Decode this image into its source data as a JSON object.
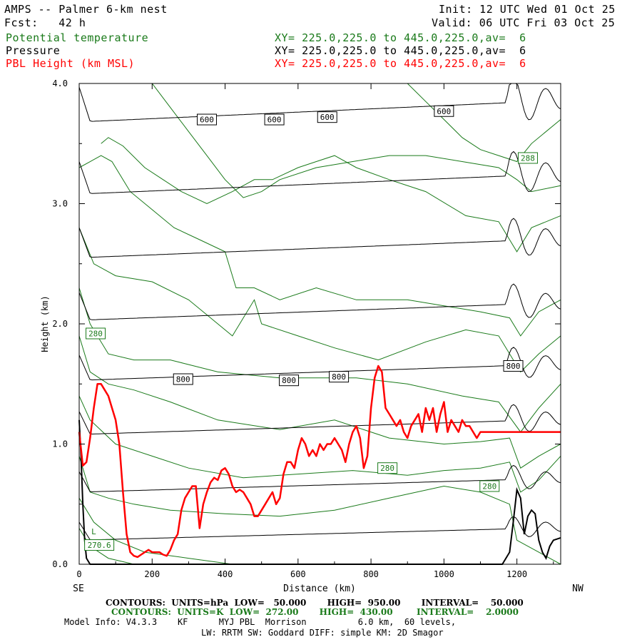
{
  "header": {
    "model_title": "AMPS -- Palmer 6-km nest",
    "init_line": "Init: 12 UTC Wed 01 Oct 25",
    "forecast_line": "Fcst:   42 h",
    "valid_line": "Valid: 06 UTC Fri 03 Oct 25",
    "fields": [
      {
        "name": "Potential temperature",
        "xy": "XY= 225.0,225.0 to 445.0,225.0,av=  6",
        "color": "#1a7a1a"
      },
      {
        "name": "Pressure",
        "xy": "XY= 225.0,225.0 to 445.0,225.0,av=  6",
        "color": "#000000"
      },
      {
        "name": "PBL Height (km MSL)",
        "xy": "XY= 225.0,225.0 to 445.0,225.0,av=  6",
        "color": "#ff0000"
      }
    ]
  },
  "footer": {
    "pressure_contours": "CONTOURS:  UNITS=hPa  LOW=   50.000       HIGH=  950.00       INTERVAL=    50.000",
    "theta_contours": "CONTOURS:  UNITS=K  LOW=  272.00       HIGH=  430.00        INTERVAL=    2.0000",
    "model_info_1": "Model Info: V4.3.3    KF      MYJ PBL  Morrison          6.0 km,  60 levels,",
    "model_info_2": "LW: RRTM SW: Goddard DIFF: simple KM: 2D Smagor"
  },
  "chart_data": {
    "type": "line",
    "xlabel": "Distance (km)",
    "ylabel": "Height (km)",
    "x_end_labels": {
      "left": "SE",
      "right": "NW"
    },
    "xlim": [
      0,
      1320
    ],
    "ylim": [
      0.0,
      4.0
    ],
    "xticks": [
      0,
      200,
      400,
      600,
      800,
      1000,
      1200
    ],
    "yticks": [
      0.0,
      1.0,
      2.0,
      3.0,
      4.0
    ],
    "ytick_labels": [
      "0.0",
      "1.0",
      "2.0",
      "3.0",
      "4.0"
    ],
    "colors": {
      "pressure": "#000000",
      "theta": "#1a7a1a",
      "pbl": "#ff0000"
    },
    "pbl_height": {
      "name": "PBL Height (km MSL)",
      "x": [
        0,
        10,
        20,
        30,
        40,
        50,
        60,
        70,
        80,
        90,
        100,
        110,
        120,
        130,
        140,
        150,
        160,
        170,
        180,
        190,
        200,
        210,
        220,
        230,
        240,
        250,
        260,
        270,
        280,
        290,
        300,
        310,
        320,
        330,
        340,
        350,
        360,
        370,
        380,
        390,
        400,
        410,
        420,
        430,
        440,
        450,
        460,
        470,
        480,
        490,
        500,
        510,
        520,
        530,
        540,
        550,
        560,
        570,
        580,
        590,
        600,
        610,
        620,
        630,
        640,
        650,
        660,
        670,
        680,
        690,
        700,
        710,
        720,
        730,
        740,
        750,
        760,
        770,
        780,
        790,
        800,
        810,
        820,
        830,
        840,
        850,
        860,
        870,
        880,
        890,
        900,
        910,
        920,
        930,
        940,
        950,
        960,
        970,
        980,
        990,
        1000,
        1010,
        1020,
        1030,
        1040,
        1050,
        1060,
        1070,
        1080,
        1090,
        1100,
        1110,
        1120,
        1130,
        1140,
        1150,
        1160,
        1170,
        1180,
        1190,
        1200,
        1210,
        1220,
        1230,
        1240,
        1250,
        1260,
        1270,
        1280,
        1290,
        1300,
        1310,
        1320
      ],
      "values": [
        1.1,
        0.82,
        0.85,
        1.05,
        1.3,
        1.5,
        1.5,
        1.45,
        1.4,
        1.3,
        1.2,
        1.0,
        0.6,
        0.25,
        0.1,
        0.07,
        0.06,
        0.08,
        0.1,
        0.12,
        0.1,
        0.1,
        0.1,
        0.08,
        0.07,
        0.12,
        0.2,
        0.25,
        0.45,
        0.55,
        0.6,
        0.65,
        0.65,
        0.3,
        0.5,
        0.6,
        0.68,
        0.72,
        0.7,
        0.78,
        0.8,
        0.75,
        0.65,
        0.6,
        0.62,
        0.6,
        0.55,
        0.5,
        0.4,
        0.4,
        0.45,
        0.5,
        0.55,
        0.6,
        0.5,
        0.55,
        0.75,
        0.85,
        0.85,
        0.8,
        0.95,
        1.05,
        1.0,
        0.9,
        0.95,
        0.9,
        1.0,
        0.95,
        1.0,
        1.0,
        1.05,
        1.0,
        0.95,
        0.85,
        1.0,
        1.1,
        1.15,
        1.05,
        0.8,
        0.9,
        1.3,
        1.55,
        1.65,
        1.6,
        1.3,
        1.25,
        1.2,
        1.15,
        1.2,
        1.1,
        1.05,
        1.15,
        1.2,
        1.25,
        1.1,
        1.3,
        1.2,
        1.3,
        1.1,
        1.25,
        1.35,
        1.1,
        1.2,
        1.15,
        1.1,
        1.2,
        1.15,
        1.15,
        1.1,
        1.05,
        1.1,
        1.1,
        1.1,
        1.1,
        1.1,
        1.1,
        1.1,
        1.1,
        1.1,
        1.1,
        1.1,
        1.1,
        1.1,
        1.1,
        1.1,
        1.1,
        1.1,
        1.1,
        1.1,
        1.1,
        1.1,
        1.1,
        1.1
      ]
    },
    "pressure_labels": [
      {
        "text": "600",
        "x": 350,
        "y": 3.7
      },
      {
        "text": "600",
        "x": 535,
        "y": 3.7
      },
      {
        "text": "600",
        "x": 680,
        "y": 3.72
      },
      {
        "text": "600",
        "x": 1000,
        "y": 3.77
      },
      {
        "text": "800",
        "x": 285,
        "y": 1.54
      },
      {
        "text": "800",
        "x": 575,
        "y": 1.53
      },
      {
        "text": "800",
        "x": 712,
        "y": 1.56
      },
      {
        "text": "800",
        "x": 1190,
        "y": 1.65
      }
    ],
    "theta_labels": [
      {
        "text": "288",
        "x": 1230,
        "y": 3.38
      },
      {
        "text": "280",
        "x": 45,
        "y": 1.92
      },
      {
        "text": "280",
        "x": 845,
        "y": 0.8
      },
      {
        "text": "280",
        "x": 1125,
        "y": 0.65
      },
      {
        "text": "270.6",
        "x": 55,
        "y": 0.16
      }
    ],
    "low_marker": {
      "text": "L",
      "x": 40,
      "y": 0.25
    }
  }
}
